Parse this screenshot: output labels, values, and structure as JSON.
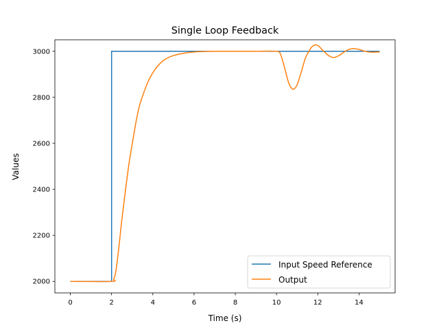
{
  "chart_data": {
    "type": "line",
    "title": "Single Loop Feedback",
    "xlabel": "Time (s)",
    "ylabel": "Values",
    "xlim": [
      -0.75,
      15.75
    ],
    "ylim": [
      1950,
      3050
    ],
    "xticks": [
      0,
      2,
      4,
      6,
      8,
      10,
      12,
      14
    ],
    "yticks": [
      2000,
      2200,
      2400,
      2600,
      2800,
      3000
    ],
    "grid": false,
    "legend_placement": "lower-right",
    "series": [
      {
        "name": "Input Speed Reference",
        "color": "#1f77b4",
        "x": [
          0,
          2,
          2,
          15
        ],
        "y": [
          2000,
          2000,
          3000,
          3000
        ]
      },
      {
        "name": "Output",
        "color": "#ff7f0e",
        "x": [
          0,
          2.0,
          2.1,
          2.2,
          2.36,
          2.5,
          2.69,
          2.85,
          3.03,
          3.2,
          3.36,
          3.6,
          3.82,
          4.1,
          4.36,
          4.6,
          4.92,
          5.4,
          6.0,
          7.0,
          8.0,
          9.0,
          10.0,
          10.2,
          10.4,
          10.6,
          10.8,
          11.0,
          11.2,
          11.4,
          11.57,
          11.72,
          11.87,
          12.05,
          12.25,
          12.5,
          12.74,
          13.0,
          13.3,
          13.5,
          13.73,
          14.0,
          14.3,
          14.6,
          15.0
        ],
        "y": [
          2000,
          2000,
          2010,
          2040,
          2153,
          2270,
          2407,
          2515,
          2612,
          2700,
          2765,
          2830,
          2878,
          2920,
          2948,
          2965,
          2979,
          2990,
          2997,
          3000,
          3000,
          3000,
          3000,
          2985,
          2925,
          2860,
          2835,
          2855,
          2910,
          2970,
          3000,
          3020,
          3028,
          3022,
          3003,
          2983,
          2973,
          2980,
          2998,
          3008,
          3012,
          3008,
          3000,
          2996,
          2997
        ]
      }
    ]
  }
}
